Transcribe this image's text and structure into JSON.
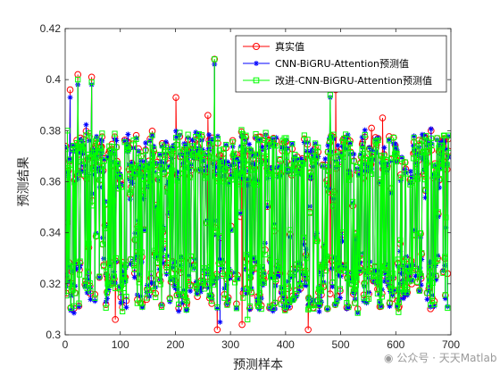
{
  "chart_data": {
    "type": "line",
    "xlabel": "预测样本",
    "ylabel": "预测结果",
    "xlim": [
      0,
      700
    ],
    "ylim": [
      0.3,
      0.42
    ],
    "xticks": [
      "0",
      "100",
      "200",
      "300",
      "400",
      "500",
      "600",
      "700"
    ],
    "yticks": [
      "0.3",
      "0.32",
      "0.34",
      "0.36",
      "0.38",
      "0.4",
      "0.42"
    ],
    "grid": false,
    "legend_position": "top-right",
    "n_samples": 696,
    "series": [
      {
        "name": "真实值",
        "color": "#ff0000",
        "marker": "circle",
        "highlight_points": [
          [
            3,
            0.344
          ],
          [
            8,
            0.396
          ],
          [
            22,
            0.402
          ],
          [
            47,
            0.401
          ],
          [
            90,
            0.306
          ],
          [
            200,
            0.393
          ],
          [
            258,
            0.386
          ],
          [
            270,
            0.408
          ],
          [
            275,
            0.302
          ],
          [
            320,
            0.304
          ],
          [
            440,
            0.302
          ],
          [
            490,
            0.396
          ],
          [
            555,
            0.381
          ],
          [
            575,
            0.385
          ],
          [
            663,
            0.38
          ],
          [
            693,
            0.324
          ]
        ]
      },
      {
        "name": "CNN-BiGRU-Attention预测值",
        "color": "#0000ff",
        "marker": "asterisk",
        "highlight_points": [
          [
            8,
            0.393
          ],
          [
            22,
            0.398
          ],
          [
            47,
            0.398
          ],
          [
            270,
            0.406
          ],
          [
            280,
            0.305
          ],
          [
            480,
            0.393
          ],
          [
            690,
            0.342
          ]
        ]
      },
      {
        "name": "改进-CNN-BiGRU-Attention预测值",
        "color": "#00ff00",
        "marker": "square",
        "highlight_points": [
          [
            3,
            0.38
          ],
          [
            22,
            0.4
          ],
          [
            47,
            0.399
          ],
          [
            270,
            0.408
          ],
          [
            330,
            0.306
          ],
          [
            480,
            0.394
          ],
          [
            690,
            0.346
          ]
        ]
      }
    ]
  },
  "watermark": "公众号 · 天天Matlab",
  "watermark_icon": "wechat-icon"
}
